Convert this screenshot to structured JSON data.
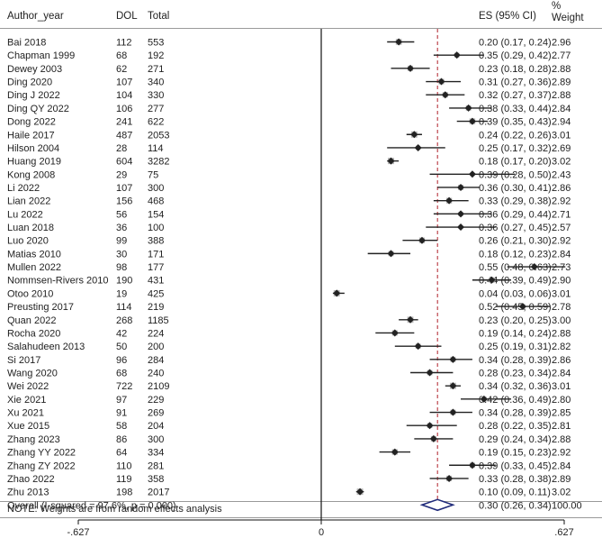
{
  "chart_data": {
    "type": "forest",
    "headers": {
      "study": "Author_year",
      "dol": "DOL",
      "total": "Total",
      "es": "ES (95% CI)",
      "weight_line1": "%",
      "weight_line2": "Weight"
    },
    "studies": [
      {
        "name": "Bai 2018",
        "dol": "112",
        "total": "553",
        "es": 0.2,
        "lo": 0.17,
        "hi": 0.24,
        "es_text": "0.20 (0.17, 0.24)",
        "weight": "2.96"
      },
      {
        "name": "Chapman 1999",
        "dol": "68",
        "total": "192",
        "es": 0.35,
        "lo": 0.29,
        "hi": 0.42,
        "es_text": "0.35 (0.29, 0.42)",
        "weight": "2.77"
      },
      {
        "name": "Dewey 2003",
        "dol": "62",
        "total": "271",
        "es": 0.23,
        "lo": 0.18,
        "hi": 0.28,
        "es_text": "0.23 (0.18, 0.28)",
        "weight": "2.88"
      },
      {
        "name": "Ding 2020",
        "dol": "107",
        "total": "340",
        "es": 0.31,
        "lo": 0.27,
        "hi": 0.36,
        "es_text": "0.31 (0.27, 0.36)",
        "weight": "2.89"
      },
      {
        "name": "Ding J 2022",
        "dol": "104",
        "total": "330",
        "es": 0.32,
        "lo": 0.27,
        "hi": 0.37,
        "es_text": "0.32 (0.27, 0.37)",
        "weight": "2.88"
      },
      {
        "name": "Ding QY 2022",
        "dol": "106",
        "total": "277",
        "es": 0.38,
        "lo": 0.33,
        "hi": 0.44,
        "es_text": "0.38 (0.33, 0.44)",
        "weight": "2.84"
      },
      {
        "name": "Dong 2022",
        "dol": "241",
        "total": "622",
        "es": 0.39,
        "lo": 0.35,
        "hi": 0.43,
        "es_text": "0.39 (0.35, 0.43)",
        "weight": "2.94"
      },
      {
        "name": "Haile 2017",
        "dol": "487",
        "total": "2053",
        "es": 0.24,
        "lo": 0.22,
        "hi": 0.26,
        "es_text": "0.24 (0.22, 0.26)",
        "weight": "3.01"
      },
      {
        "name": "Hilson 2004",
        "dol": "28",
        "total": "114",
        "es": 0.25,
        "lo": 0.17,
        "hi": 0.32,
        "es_text": "0.25 (0.17, 0.32)",
        "weight": "2.69"
      },
      {
        "name": "Huang 2019",
        "dol": "604",
        "total": "3282",
        "es": 0.18,
        "lo": 0.17,
        "hi": 0.2,
        "es_text": "0.18 (0.17, 0.20)",
        "weight": "3.02"
      },
      {
        "name": "Kong 2008",
        "dol": "29",
        "total": "75",
        "es": 0.39,
        "lo": 0.28,
        "hi": 0.5,
        "es_text": "0.39 (0.28, 0.50)",
        "weight": "2.43"
      },
      {
        "name": "Li 2022",
        "dol": "107",
        "total": "300",
        "es": 0.36,
        "lo": 0.3,
        "hi": 0.41,
        "es_text": "0.36 (0.30, 0.41)",
        "weight": "2.86"
      },
      {
        "name": "Lian 2022",
        "dol": "156",
        "total": "468",
        "es": 0.33,
        "lo": 0.29,
        "hi": 0.38,
        "es_text": "0.33 (0.29, 0.38)",
        "weight": "2.92"
      },
      {
        "name": "Lu 2022",
        "dol": "56",
        "total": "154",
        "es": 0.36,
        "lo": 0.29,
        "hi": 0.44,
        "es_text": "0.36 (0.29, 0.44)",
        "weight": "2.71"
      },
      {
        "name": "Luan 2018",
        "dol": "36",
        "total": "100",
        "es": 0.36,
        "lo": 0.27,
        "hi": 0.45,
        "es_text": "0.36 (0.27, 0.45)",
        "weight": "2.57"
      },
      {
        "name": "Luo 2020",
        "dol": "99",
        "total": "388",
        "es": 0.26,
        "lo": 0.21,
        "hi": 0.3,
        "es_text": "0.26 (0.21, 0.30)",
        "weight": "2.92"
      },
      {
        "name": "Matias 2010",
        "dol": "30",
        "total": "171",
        "es": 0.18,
        "lo": 0.12,
        "hi": 0.23,
        "es_text": "0.18 (0.12, 0.23)",
        "weight": "2.84"
      },
      {
        "name": "Mullen 2022",
        "dol": "98",
        "total": "177",
        "es": 0.55,
        "lo": 0.48,
        "hi": 0.63,
        "es_text": "0.55 (0.48, 0.63)",
        "weight": "2.73"
      },
      {
        "name": "Nommsen-Rivers 2010",
        "dol": "190",
        "total": "431",
        "es": 0.44,
        "lo": 0.39,
        "hi": 0.49,
        "es_text": "0.44 (0.39, 0.49)",
        "weight": "2.90"
      },
      {
        "name": "Otoo 2010",
        "dol": "19",
        "total": "425",
        "es": 0.04,
        "lo": 0.03,
        "hi": 0.06,
        "es_text": "0.04 (0.03, 0.06)",
        "weight": "3.01"
      },
      {
        "name": "Preusting 2017",
        "dol": "114",
        "total": "219",
        "es": 0.52,
        "lo": 0.45,
        "hi": 0.59,
        "es_text": "0.52 (0.45, 0.59)",
        "weight": "2.78"
      },
      {
        "name": "Quan 2022",
        "dol": "268",
        "total": "1185",
        "es": 0.23,
        "lo": 0.2,
        "hi": 0.25,
        "es_text": "0.23 (0.20, 0.25)",
        "weight": "3.00"
      },
      {
        "name": "Rocha 2020",
        "dol": "42",
        "total": "224",
        "es": 0.19,
        "lo": 0.14,
        "hi": 0.24,
        "es_text": "0.19 (0.14, 0.24)",
        "weight": "2.88"
      },
      {
        "name": "Salahudeen 2013",
        "dol": "50",
        "total": "200",
        "es": 0.25,
        "lo": 0.19,
        "hi": 0.31,
        "es_text": "0.25 (0.19, 0.31)",
        "weight": "2.82"
      },
      {
        "name": "Si 2017",
        "dol": "96",
        "total": "284",
        "es": 0.34,
        "lo": 0.28,
        "hi": 0.39,
        "es_text": "0.34 (0.28, 0.39)",
        "weight": "2.86"
      },
      {
        "name": "Wang 2020",
        "dol": "68",
        "total": "240",
        "es": 0.28,
        "lo": 0.23,
        "hi": 0.34,
        "es_text": "0.28 (0.23, 0.34)",
        "weight": "2.84"
      },
      {
        "name": "Wei 2022",
        "dol": "722",
        "total": "2109",
        "es": 0.34,
        "lo": 0.32,
        "hi": 0.36,
        "es_text": "0.34 (0.32, 0.36)",
        "weight": "3.01"
      },
      {
        "name": "Xie 2021",
        "dol": "97",
        "total": "229",
        "es": 0.42,
        "lo": 0.36,
        "hi": 0.49,
        "es_text": "0.42 (0.36, 0.49)",
        "weight": "2.80"
      },
      {
        "name": "Xu 2021",
        "dol": "91",
        "total": "269",
        "es": 0.34,
        "lo": 0.28,
        "hi": 0.39,
        "es_text": "0.34 (0.28, 0.39)",
        "weight": "2.85"
      },
      {
        "name": "Xue 2015",
        "dol": "58",
        "total": "204",
        "es": 0.28,
        "lo": 0.22,
        "hi": 0.35,
        "es_text": "0.28 (0.22, 0.35)",
        "weight": "2.81"
      },
      {
        "name": "Zhang 2023",
        "dol": "86",
        "total": "300",
        "es": 0.29,
        "lo": 0.24,
        "hi": 0.34,
        "es_text": "0.29 (0.24, 0.34)",
        "weight": "2.88"
      },
      {
        "name": "Zhang YY 2022",
        "dol": "64",
        "total": "334",
        "es": 0.19,
        "lo": 0.15,
        "hi": 0.23,
        "es_text": "0.19 (0.15, 0.23)",
        "weight": "2.92"
      },
      {
        "name": "Zhang ZY 2022",
        "dol": "110",
        "total": "281",
        "es": 0.39,
        "lo": 0.33,
        "hi": 0.45,
        "es_text": "0.39 (0.33, 0.45)",
        "weight": "2.84"
      },
      {
        "name": "Zhao 2022",
        "dol": "119",
        "total": "358",
        "es": 0.33,
        "lo": 0.28,
        "hi": 0.38,
        "es_text": "0.33 (0.28, 0.38)",
        "weight": "2.89"
      },
      {
        "name": "Zhu 2013",
        "dol": "198",
        "total": "2017",
        "es": 0.1,
        "lo": 0.09,
        "hi": 0.11,
        "es_text": "0.10 (0.09, 0.11)",
        "weight": "3.02"
      }
    ],
    "overall": {
      "label": "Overall  (I-squared = 97.6%, p = 0.000)",
      "es": 0.3,
      "lo": 0.26,
      "hi": 0.34,
      "es_text": "0.30 (0.26, 0.34)",
      "weight": "100.00"
    },
    "note": "NOTE: Weights are from random effects analysis",
    "x_axis": {
      "ticks": [
        -0.627,
        0,
        0.627
      ],
      "tick_labels": [
        "-.627",
        "0",
        ".627"
      ],
      "range": [
        -0.627,
        0.627
      ],
      "null_line": 0
    },
    "colors": {
      "text": "#222222",
      "marker": "#222222",
      "overall_diamond": "#1f2a7a",
      "reference_line": "#b0202a",
      "divider": "#9a9a9a"
    }
  }
}
